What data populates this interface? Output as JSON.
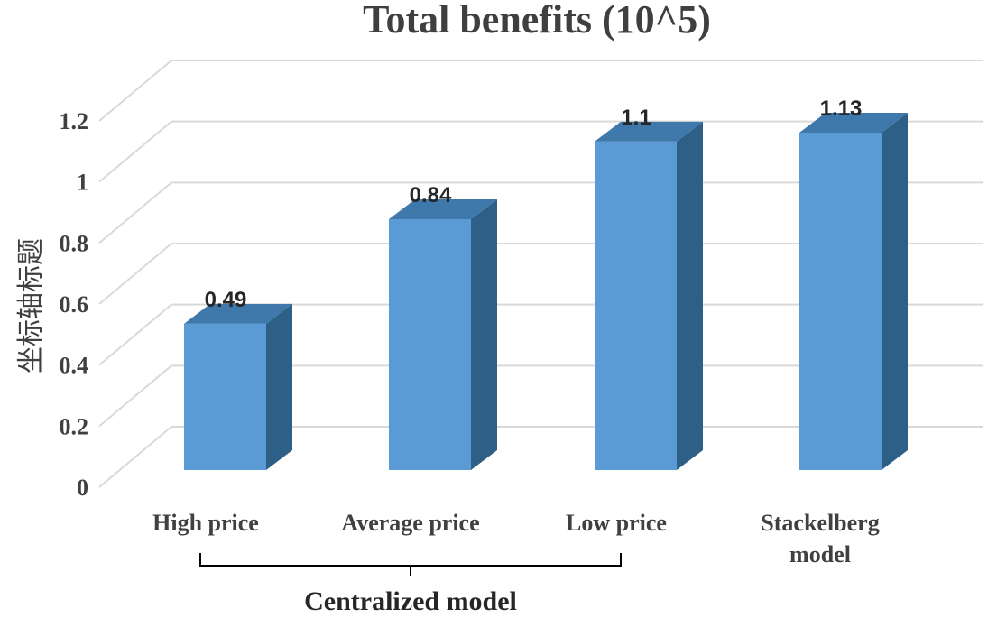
{
  "chart_data": {
    "type": "bar",
    "title": "Total benefits (10^5)",
    "ylabel": "坐标轴标题",
    "xlabel": "",
    "categories": [
      {
        "label": [
          "High price"
        ],
        "value": 0.49,
        "value_label": "0.49"
      },
      {
        "label": [
          "Average price"
        ],
        "value": 0.84,
        "value_label": "0.84"
      },
      {
        "label": [
          "Low price"
        ],
        "value": 1.1,
        "value_label": "1.1"
      },
      {
        "label": [
          "Stackelberg",
          "model"
        ],
        "value": 1.13,
        "value_label": "1.13"
      }
    ],
    "yticks": [
      {
        "value": 0,
        "label": "0"
      },
      {
        "value": 0.2,
        "label": "0.2"
      },
      {
        "value": 0.4,
        "label": "0.4"
      },
      {
        "value": 0.6,
        "label": "0.6"
      },
      {
        "value": 0.8,
        "label": "0.8"
      },
      {
        "value": 1,
        "label": "1"
      },
      {
        "value": 1.2,
        "label": "1.2"
      }
    ],
    "ylim": [
      0,
      1.2
    ],
    "grid": true,
    "legend": "none",
    "group_annotation": {
      "label": "Centralized model",
      "categories": [
        "High price",
        "Average price",
        "Low price"
      ]
    }
  },
  "colors": {
    "bar_front": "#5b9bd5",
    "bar_side": "#2e5f87",
    "bar_top": "#3f78aa",
    "bar_edge": "#4a85bb",
    "grid": "#d9d9d9",
    "text": "#404040"
  }
}
